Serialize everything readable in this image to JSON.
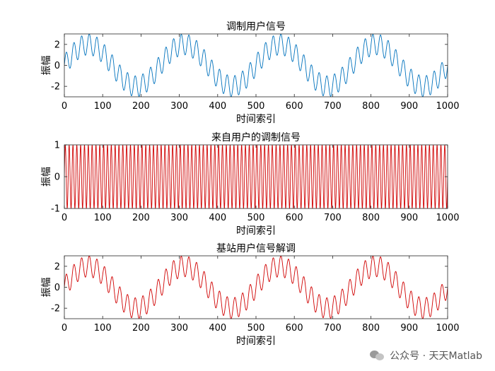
{
  "chart_data": [
    {
      "type": "line",
      "title": "调制用户信号",
      "xlabel": "时间索引",
      "ylabel": "振幅",
      "xlim": [
        0,
        1000
      ],
      "ylim": [
        -3,
        3
      ],
      "xticks": [
        0,
        100,
        200,
        300,
        400,
        500,
        600,
        700,
        800,
        900,
        1000
      ],
      "yticks": [
        -2,
        0,
        2
      ],
      "grid": false,
      "series": [
        {
          "color": "#0072BD",
          "formula": "2*sin(2*pi*x/250) + sin(2*pi*x/20)",
          "x_range": [
            0,
            1000
          ]
        }
      ]
    },
    {
      "type": "line",
      "title": "来自用户的调制信号",
      "xlabel": "时间索引",
      "ylabel": "振幅",
      "xlim": [
        0,
        1000
      ],
      "ylim": [
        -1,
        1
      ],
      "xticks": [
        0,
        100,
        200,
        300,
        400,
        500,
        600,
        700,
        800,
        900,
        1000
      ],
      "yticks": [
        -1,
        0,
        1
      ],
      "grid": false,
      "series": [
        {
          "color": "#D00000",
          "formula": "sin(2*pi*x/10)",
          "x_range": [
            0,
            1000
          ]
        }
      ]
    },
    {
      "type": "line",
      "title": "基站用户信号解调",
      "xlabel": "时间索引",
      "ylabel": "振幅",
      "xlim": [
        0,
        1000
      ],
      "ylim": [
        -3,
        3
      ],
      "xticks": [
        0,
        100,
        200,
        300,
        400,
        500,
        600,
        700,
        800,
        900,
        1000
      ],
      "yticks": [
        -2,
        0,
        2
      ],
      "grid": false,
      "series": [
        {
          "color": "#D00000",
          "formula": "2*sin(2*pi*x/250) + sin(2*pi*x/20)",
          "x_range": [
            0,
            1000
          ]
        }
      ]
    }
  ],
  "watermark": {
    "text": "公众号 · 天天Matlab"
  }
}
